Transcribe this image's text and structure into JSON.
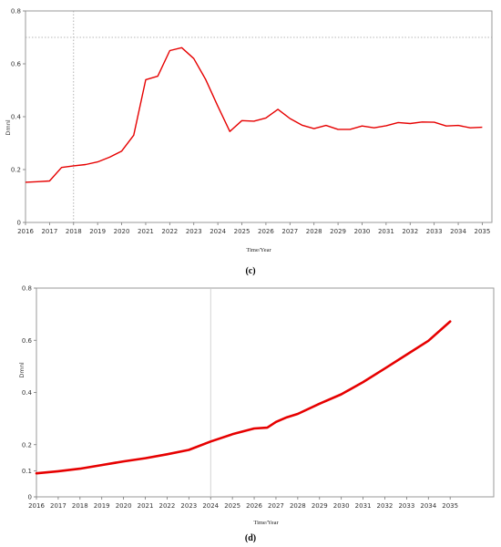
{
  "chart_data": [
    {
      "type": "line",
      "caption": "(c)",
      "xlabel": "Time/Year",
      "ylabel": "Dmnl",
      "xlim": [
        2016,
        2035.4
      ],
      "ylim": [
        0,
        0.8
      ],
      "x_ticks": [
        "2016",
        "2017",
        "2018",
        "2019",
        "2020",
        "2021",
        "2022",
        "2023",
        "2024",
        "2025",
        "2026",
        "2027",
        "2028",
        "2029",
        "2030",
        "2031",
        "2032",
        "2033",
        "2034",
        "2035"
      ],
      "y_ticks": [
        "0",
        "0.2",
        "0.4",
        "0.6",
        "0.8"
      ],
      "reference_line": {
        "y": 0.7,
        "style": "dotted"
      },
      "ref_x_line": {
        "x": 2018,
        "style": "dotted"
      },
      "line_color": "#e60000",
      "series": [
        {
          "x": [
            2016,
            2016.5,
            2017,
            2017.5,
            2018,
            2018.5,
            2019,
            2019.5,
            2020,
            2020.5,
            2021,
            2021.5,
            2022,
            2022.5,
            2023,
            2023.5,
            2024,
            2024.5,
            2025,
            2025.5,
            2026,
            2026.5,
            2027,
            2027.5,
            2028,
            2028.5,
            2029,
            2029.5,
            2030,
            2030.5,
            2031,
            2031.5,
            2032,
            2032.5,
            2033,
            2033.5,
            2034,
            2034.5,
            2035
          ],
          "y": [
            0.152,
            0.154,
            0.157,
            0.208,
            0.214,
            0.219,
            0.229,
            0.247,
            0.27,
            0.33,
            0.54,
            0.553,
            0.65,
            0.661,
            0.62,
            0.54,
            0.44,
            0.344,
            0.385,
            0.383,
            0.395,
            0.428,
            0.393,
            0.368,
            0.355,
            0.367,
            0.352,
            0.352,
            0.365,
            0.358,
            0.366,
            0.378,
            0.374,
            0.38,
            0.379,
            0.365,
            0.367,
            0.358,
            0.36
          ]
        }
      ]
    },
    {
      "type": "line",
      "caption": "(d)",
      "xlabel": "Time/Year",
      "ylabel": "Dmnl",
      "xlim": [
        2016,
        2037
      ],
      "ylim": [
        0,
        0.8
      ],
      "x_ticks": [
        "2016",
        "2017",
        "2018",
        "2019",
        "2020",
        "2021",
        "2022",
        "2023",
        "2024",
        "2025",
        "2026",
        "2027",
        "2028",
        "2029",
        "2030",
        "2031",
        "2032",
        "2033",
        "2034",
        "2035"
      ],
      "y_ticks": [
        "0",
        "0.1",
        "0.2",
        "0.4",
        "0.6",
        "0.8"
      ],
      "ref_x_line": {
        "x": 2024,
        "style": "solid"
      },
      "line_color": "#e60000",
      "series": [
        {
          "x": [
            2016,
            2017,
            2018,
            2019,
            2020,
            2021,
            2022,
            2023,
            2024,
            2025,
            2026,
            2026.6,
            2027,
            2027.5,
            2028,
            2029,
            2030,
            2031,
            2032,
            2033,
            2034,
            2035
          ],
          "y": [
            0.09,
            0.098,
            0.108,
            0.122,
            0.136,
            0.148,
            0.163,
            0.18,
            0.212,
            0.24,
            0.262,
            0.265,
            0.287,
            0.305,
            0.318,
            0.357,
            0.393,
            0.44,
            0.492,
            0.545,
            0.598,
            0.672
          ]
        }
      ]
    }
  ]
}
